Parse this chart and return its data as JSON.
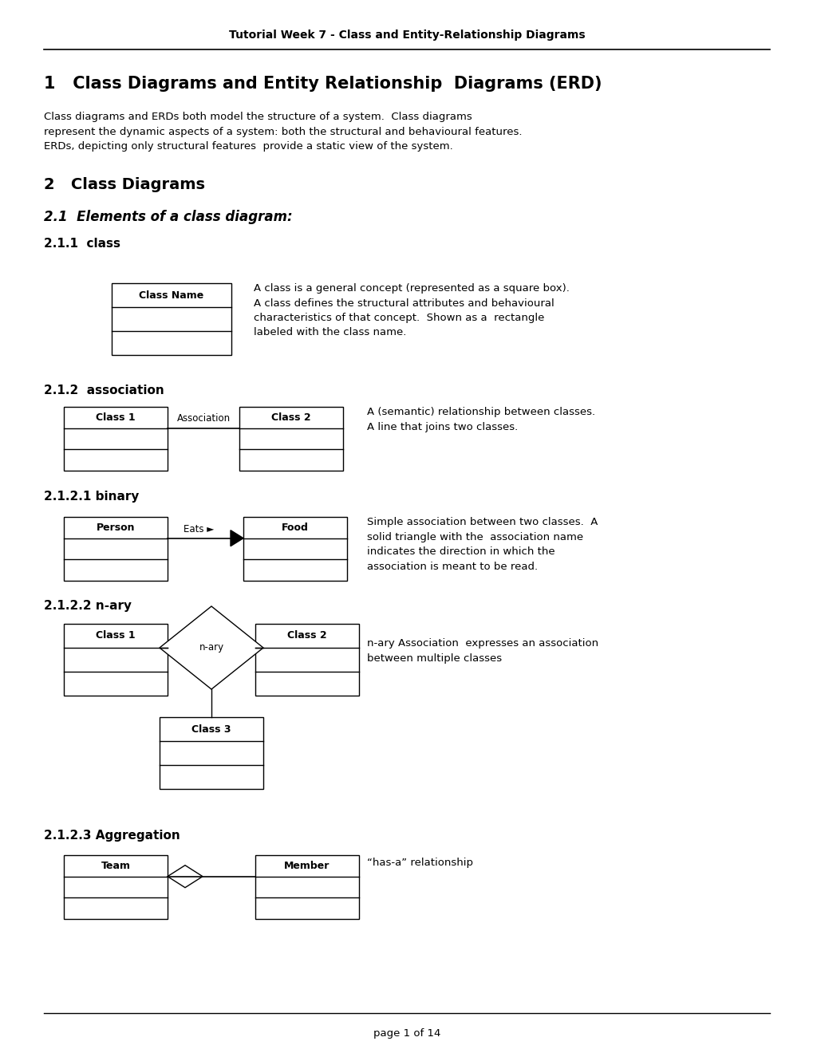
{
  "title_header": "Tutorial Week 7 - Class and Entity-Relationship Diagrams",
  "section1_title": "1   Class Diagrams and Entity Relationship  Diagrams (ERD)",
  "section1_body": "Class diagrams and ERDs both model the structure of a system.  Class diagrams\nrepresent the dynamic aspects of a system: both the structural and behavioural features.\nERDs, depicting only structural features  provide a static view of the system.",
  "section2_title": "2   Class Diagrams",
  "section21_title": "2.1  Elements of a class diagram:",
  "section211_title": "2.1.1  class",
  "section212_title": "2.1.2  association",
  "section2121_title": "2.1.2.1 binary",
  "section2122_title": "2.1.2.2 n-ary",
  "section2123_title": "2.1.2.3 Aggregation",
  "class_box_text": "A class is a general concept (represented as a square box).\nA class defines the structural attributes and behavioural\ncharacteristics of that concept.  Shown as a  rectangle\nlabeled with the class name.",
  "assoc_text": "A (semantic) relationship between classes.\nA line that joins two classes.",
  "binary_text": "Simple association between two classes.  A\nsolid triangle with the  association name\nindicates the direction in which the\nassociation is meant to be read.",
  "nary_text": "n-ary Association  expresses an association\nbetween multiple classes",
  "aggregation_text": "“has-a” relationship",
  "footer": "page 1 of 14",
  "bg_color": "#ffffff",
  "text_color": "#000000"
}
